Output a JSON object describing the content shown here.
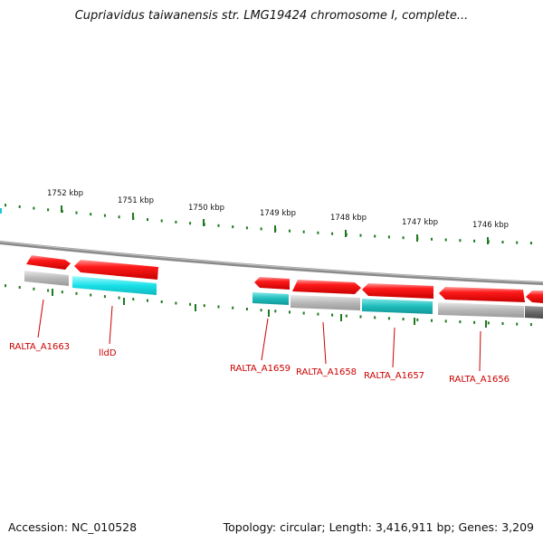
{
  "title": "Cupriavidus taiwanensis str. LMG19424 chromosome I, complete...",
  "accession": "Accession: NC_010528",
  "summary": "Topology: circular; Length: 3,416,911 bp; Genes: 3,209",
  "colors": {
    "backbone": "#888888",
    "tick": "#1e7a1e",
    "gene": "#ee0000",
    "gene_label": "#cc0000",
    "cds_grey": "#b0b0b0",
    "cds_cyan": "#19e0e8",
    "cds_teal": "#1fbcbc",
    "cds_dark": "#6a6a6a"
  },
  "ticks": [
    "1752 kbp",
    "1751 kbp",
    "1750 kbp",
    "1749 kbp",
    "1748 kbp",
    "1747 kbp",
    "1746 kbp"
  ],
  "genes": [
    {
      "label": "RALTA_A1663"
    },
    {
      "label": "lldD"
    },
    {
      "label": "RALTA_A1659"
    },
    {
      "label": "RALTA_A1658"
    },
    {
      "label": "RALTA_A1657"
    },
    {
      "label": "RALTA_A1656"
    }
  ]
}
